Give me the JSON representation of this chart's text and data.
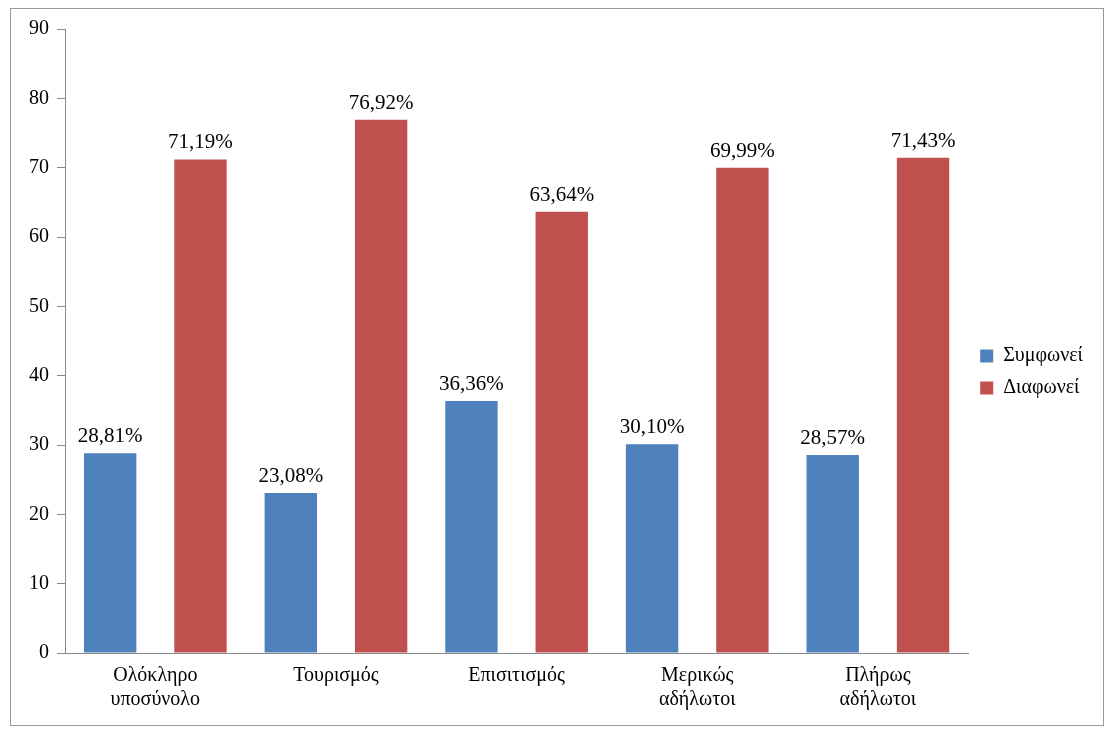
{
  "chart_data": {
    "type": "bar",
    "categories": [
      "Ολόκληρο υποσύνολο",
      "Τουρισμός",
      "Επισιτισμός",
      "Μερικώς αδήλωτοι",
      "Πλήρως αδήλωτοι"
    ],
    "series": [
      {
        "name": "Συμφωνεί",
        "color": "#4f81bd",
        "values": [
          28.81,
          23.08,
          36.36,
          30.1,
          28.57
        ],
        "value_labels": [
          "28,81%",
          "23,08%",
          "36,36%",
          "30,10%",
          "28,57%"
        ]
      },
      {
        "name": "Διαφωνεί",
        "color": "#c0504d",
        "values": [
          71.19,
          76.92,
          63.64,
          69.99,
          71.43
        ],
        "value_labels": [
          "71,19%",
          "76,92%",
          "63,64%",
          "69,99%",
          "71,43%"
        ]
      }
    ],
    "ylim": [
      0,
      90
    ],
    "yticks": [
      0,
      10,
      20,
      30,
      40,
      50,
      60,
      70,
      80,
      90
    ],
    "grid": false,
    "legend": "right"
  }
}
